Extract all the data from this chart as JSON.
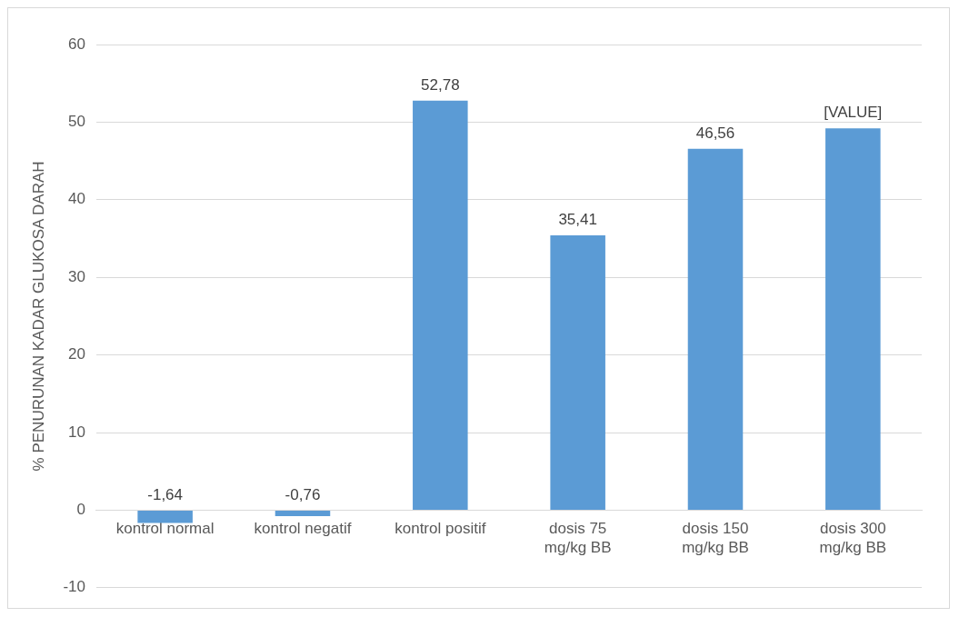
{
  "chart_data": {
    "type": "bar",
    "ylabel": "% PENURUNAN KADAR GLUKOSA DARAH",
    "categories": [
      "kontrol normal",
      "kontrol negatif",
      "kontrol positif",
      "dosis 75 mg/kg BB",
      "dosis 150 mg/kg BB",
      "dosis 300 mg/kg BB"
    ],
    "values": [
      -1.64,
      -0.76,
      52.78,
      35.41,
      46.56,
      49.2
    ],
    "value_labels": [
      "-1,64",
      "-0,76",
      "52,78",
      "35,41",
      "46,56",
      "[VALUE]"
    ],
    "color": "#5b9bd5",
    "ylim": [
      -10,
      60
    ],
    "yticks": [
      -10,
      0,
      10,
      20,
      30,
      40,
      50,
      60
    ],
    "grid": "y",
    "legend": false
  }
}
